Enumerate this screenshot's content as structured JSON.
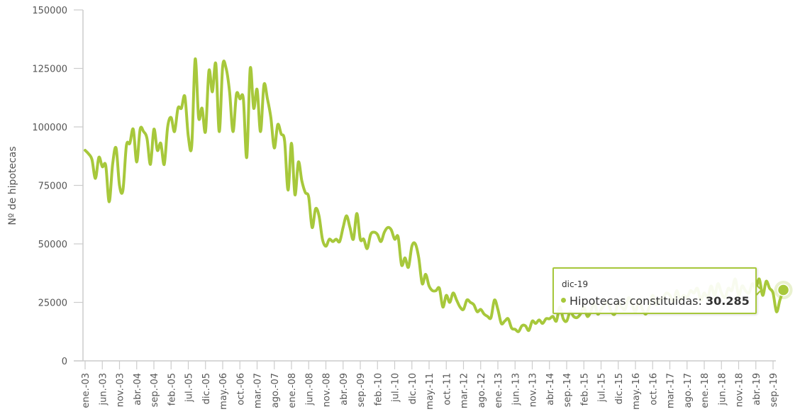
{
  "chart_data": {
    "type": "line",
    "title": "",
    "xlabel": "",
    "ylabel": "Nº de hipotecas",
    "ylim": [
      0,
      150000
    ],
    "yticks": [
      0,
      25000,
      50000,
      75000,
      100000,
      125000,
      150000
    ],
    "grid": false,
    "legend": null,
    "xtick_labels": [
      "ene.-03",
      "jun.-03",
      "nov.-03",
      "abr.-04",
      "sep.-04",
      "feb.-05",
      "jul.-05",
      "dic.-05",
      "may.-06",
      "oct.-06",
      "mar.-07",
      "ago.-07",
      "ene.-08",
      "jun.-08",
      "nov.-08",
      "abr.-09",
      "sep.-09",
      "feb.-10",
      "jul.-10",
      "dic.-10",
      "may.-11",
      "oct.-11",
      "mar.-12",
      "ago.-12",
      "ene.-13",
      "jun.-13",
      "nov.-13",
      "abr.-14",
      "sep.-14",
      "feb.-15",
      "jul.-15",
      "dic.-15",
      "may.-16",
      "oct.-16",
      "mar.-17",
      "ago.-17",
      "ene.-18",
      "jun.-18",
      "nov.-18",
      "abr.-19",
      "sep.-19"
    ],
    "x_start": "ene.-03",
    "x_end": "dic.-19",
    "series": [
      {
        "name": "Hipotecas constituidas",
        "color": "#a7c83b",
        "values": [
          90000,
          88500,
          86000,
          78000,
          87000,
          83000,
          83500,
          68000,
          84000,
          91000,
          75000,
          73000,
          92000,
          93000,
          99000,
          85000,
          99000,
          98000,
          95000,
          84000,
          99000,
          90000,
          93000,
          84000,
          100000,
          104000,
          98000,
          108000,
          108000,
          113000,
          96000,
          92000,
          129000,
          104000,
          108000,
          98000,
          124000,
          115000,
          127000,
          98000,
          126000,
          125000,
          115000,
          98000,
          114000,
          112000,
          112000,
          87000,
          125000,
          108000,
          116000,
          98000,
          118000,
          112000,
          104000,
          91000,
          101000,
          97000,
          94000,
          73000,
          93000,
          71000,
          85000,
          77000,
          72000,
          70000,
          57000,
          65000,
          62000,
          52000,
          49000,
          52000,
          51000,
          52000,
          51000,
          57000,
          62000,
          57000,
          52000,
          63000,
          52000,
          52000,
          48000,
          54000,
          55000,
          54000,
          51000,
          55000,
          57000,
          56000,
          52000,
          53000,
          41000,
          44000,
          40000,
          49000,
          50000,
          44000,
          33000,
          37000,
          32000,
          30000,
          30000,
          31000,
          23000,
          28000,
          25000,
          29000,
          26000,
          23000,
          22000,
          26000,
          25000,
          24000,
          21000,
          22000,
          20000,
          19000,
          18500,
          26000,
          22000,
          16000,
          17000,
          18000,
          14000,
          13500,
          12500,
          15000,
          15000,
          13000,
          17000,
          16000,
          17500,
          16000,
          18000,
          18000,
          19000,
          17000,
          23000,
          18000,
          17000,
          21000,
          19000,
          18500,
          20000,
          23000,
          19000,
          21000,
          25000,
          20000,
          22000,
          24000,
          25000,
          21000,
          20000,
          25000,
          23000,
          22000,
          27000,
          24000,
          21000,
          26000,
          22000,
          20000,
          23000,
          28000,
          24000,
          26000,
          27000,
          29000,
          28000,
          25000,
          30000,
          26000,
          28000,
          27000,
          30000,
          29000,
          31000,
          26000,
          29000,
          27000,
          32000,
          28000,
          33000,
          29000,
          27000,
          31000,
          30000,
          35000,
          28000,
          32000,
          30000,
          29000,
          33000,
          31000,
          35000,
          28000,
          34000,
          31000,
          29000,
          21000,
          26000,
          30285
        ]
      }
    ],
    "highlighted_point": {
      "label": "dic-19",
      "value": 30285
    }
  },
  "tooltip": {
    "date": "dic-19",
    "series_label": "Hipotecas constituidas: ",
    "value": "30.285"
  },
  "axis": {
    "y_title": "Nº de hipotecas",
    "y_labels": [
      "0",
      "25000",
      "50000",
      "75000",
      "100000",
      "125000",
      "150000"
    ]
  },
  "colors": {
    "line": "#a7c83b",
    "axis": "#cccccc",
    "text": "#555555"
  }
}
